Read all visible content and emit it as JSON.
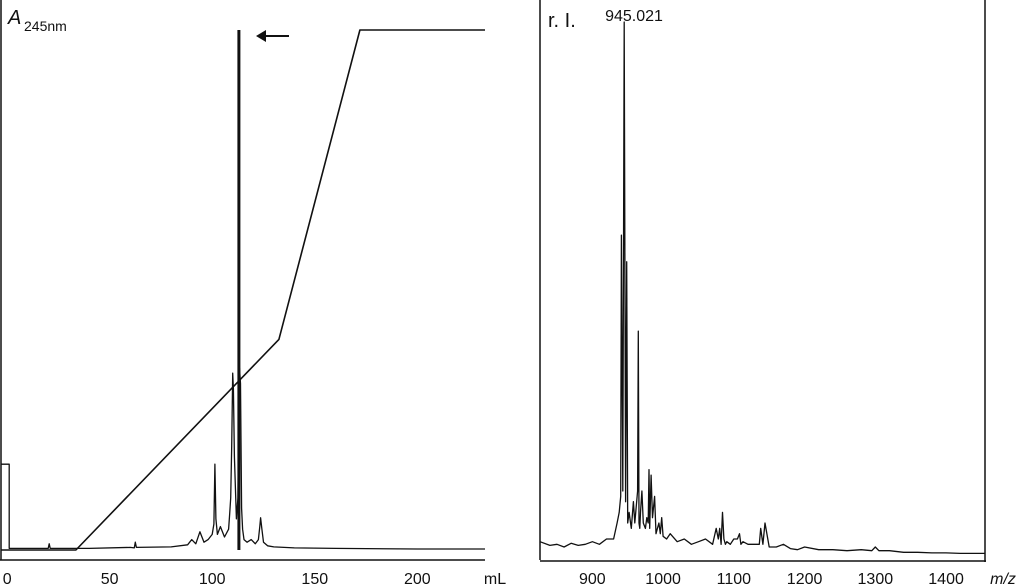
{
  "chart_data": [
    {
      "type": "line",
      "ylabel": "A",
      "ylabel_sub": "245nm",
      "xlabel": "mL",
      "xlim": [
        -3,
        233
      ],
      "ylim": [
        0,
        1
      ],
      "xticks": [
        0,
        50,
        100,
        150,
        200
      ],
      "annotations": [
        {
          "type": "arrow",
          "direction": "left",
          "points_to_x": 113
        }
      ],
      "series": [
        {
          "role": "absorbance",
          "x": [
            -3,
            0,
            1,
            1,
            20,
            20.5,
            21,
            40,
            60,
            62,
            62.5,
            63,
            80,
            88,
            90,
            92,
            94,
            96,
            98,
            100,
            100.8,
            101.3,
            101.8,
            102.5,
            104,
            106,
            108,
            108.5,
            109,
            109.5,
            110,
            110.3,
            110.8,
            111.3,
            111.8,
            112.5,
            113,
            113.3,
            113.8,
            114.3,
            114.8,
            115.5,
            117,
            119,
            121,
            122.5,
            123.2,
            123.6,
            124.2,
            125,
            127,
            130,
            140,
            160,
            200,
            233
          ],
          "y": [
            0.165,
            0.165,
            0.165,
            0.003,
            0.003,
            0.012,
            0.003,
            0.003,
            0.005,
            0.004,
            0.015,
            0.005,
            0.006,
            0.01,
            0.02,
            0.012,
            0.035,
            0.015,
            0.02,
            0.03,
            0.05,
            0.165,
            0.06,
            0.03,
            0.045,
            0.025,
            0.04,
            0.07,
            0.1,
            0.2,
            0.34,
            0.31,
            0.18,
            0.12,
            0.06,
            0.1,
            0.26,
            0.35,
            0.32,
            0.08,
            0.04,
            0.02,
            0.015,
            0.02,
            0.012,
            0.02,
            0.045,
            0.062,
            0.04,
            0.015,
            0.008,
            0.006,
            0.004,
            0.003,
            0.002,
            0.002
          ]
        },
        {
          "role": "peak",
          "x": [
            113,
            113
          ],
          "y": [
            0,
            1
          ]
        },
        {
          "role": "gradient",
          "x": [
            -3,
            33.5,
            132.5,
            172,
            233
          ],
          "y": [
            0,
            0,
            0.405,
            1,
            1
          ]
        }
      ]
    },
    {
      "type": "line",
      "ylabel": "r. I.",
      "xlabel": "m/z",
      "xlim": [
        826,
        1455
      ],
      "ylim": [
        0,
        1
      ],
      "xticks": [
        900,
        1000,
        1100,
        1200,
        1300,
        1400
      ],
      "annotations": [
        {
          "type": "peak_label",
          "text": "945.021",
          "x": 945.021
        }
      ],
      "series": [
        {
          "name": "",
          "x": [
            826,
            840,
            850,
            860,
            870,
            880,
            890,
            900,
            910,
            920,
            930,
            935,
            938,
            940,
            941,
            943,
            945,
            947,
            948.5,
            950,
            952,
            955,
            958,
            960,
            962,
            964,
            965,
            966,
            967,
            968,
            970,
            972,
            975,
            977,
            979,
            980,
            981,
            983,
            985,
            988,
            990,
            992,
            994,
            996,
            998,
            1000,
            1005,
            1010,
            1020,
            1030,
            1040,
            1050,
            1060,
            1070,
            1075,
            1078,
            1080,
            1082,
            1084,
            1086,
            1088,
            1090,
            1095,
            1100,
            1105,
            1108,
            1110,
            1113,
            1120,
            1130,
            1136,
            1138,
            1141,
            1144,
            1150,
            1160,
            1170,
            1180,
            1190,
            1200,
            1220,
            1240,
            1260,
            1280,
            1295,
            1300,
            1305,
            1320,
            1340,
            1360,
            1380,
            1400,
            1420,
            1440,
            1455
          ],
          "y": [
            0.025,
            0.018,
            0.02,
            0.015,
            0.022,
            0.018,
            0.02,
            0.025,
            0.02,
            0.03,
            0.03,
            0.06,
            0.08,
            0.11,
            0.6,
            0.12,
            1.0,
            0.1,
            0.55,
            0.06,
            0.08,
            0.05,
            0.1,
            0.06,
            0.09,
            0.12,
            0.42,
            0.06,
            0.05,
            0.08,
            0.12,
            0.06,
            0.05,
            0.07,
            0.06,
            0.16,
            0.05,
            0.15,
            0.07,
            0.11,
            0.04,
            0.05,
            0.06,
            0.04,
            0.07,
            0.035,
            0.03,
            0.04,
            0.025,
            0.03,
            0.02,
            0.025,
            0.03,
            0.02,
            0.05,
            0.03,
            0.05,
            0.02,
            0.08,
            0.03,
            0.02,
            0.025,
            0.02,
            0.03,
            0.03,
            0.04,
            0.02,
            0.025,
            0.02,
            0.02,
            0.02,
            0.05,
            0.02,
            0.06,
            0.015,
            0.015,
            0.02,
            0.012,
            0.01,
            0.015,
            0.01,
            0.01,
            0.008,
            0.01,
            0.008,
            0.015,
            0.008,
            0.008,
            0.005,
            0.005,
            0.004,
            0.004,
            0.003,
            0.003,
            0.003
          ]
        }
      ]
    }
  ]
}
